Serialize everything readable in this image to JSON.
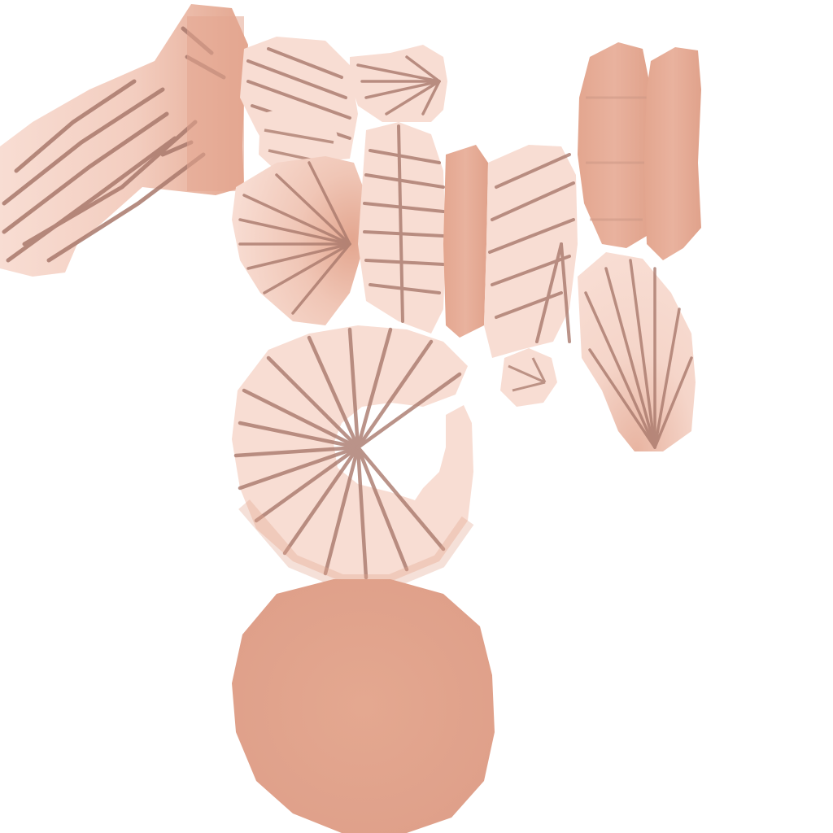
{
  "palette": {
    "background": "#ffffff",
    "skin_light": "#f8ddd3",
    "skin_mid": "#eebca9",
    "skin_dark": "#e3a68f",
    "groove": "#a9796c",
    "groove_soft": "#c99584"
  },
  "islands": [
    {
      "name": "uv-island-left-arm-band",
      "style": "striped"
    },
    {
      "name": "uv-island-top-plate",
      "style": "striped"
    },
    {
      "name": "uv-island-top-fan",
      "style": "fan"
    },
    {
      "name": "uv-island-small-plate",
      "style": "striped"
    },
    {
      "name": "uv-island-shell-fan",
      "style": "fan"
    },
    {
      "name": "uv-island-center-band",
      "style": "striped"
    },
    {
      "name": "uv-island-narrow-strip",
      "style": "shaded"
    },
    {
      "name": "uv-island-right-striped",
      "style": "striped"
    },
    {
      "name": "uv-island-right-fan",
      "style": "fan"
    },
    {
      "name": "uv-island-small-disc",
      "style": "fan"
    },
    {
      "name": "uv-island-upper-right-pad-a",
      "style": "shaded"
    },
    {
      "name": "uv-island-upper-right-pad-b",
      "style": "shaded"
    },
    {
      "name": "uv-island-ring",
      "style": "ring"
    },
    {
      "name": "uv-island-base-disc",
      "style": "solid"
    }
  ]
}
